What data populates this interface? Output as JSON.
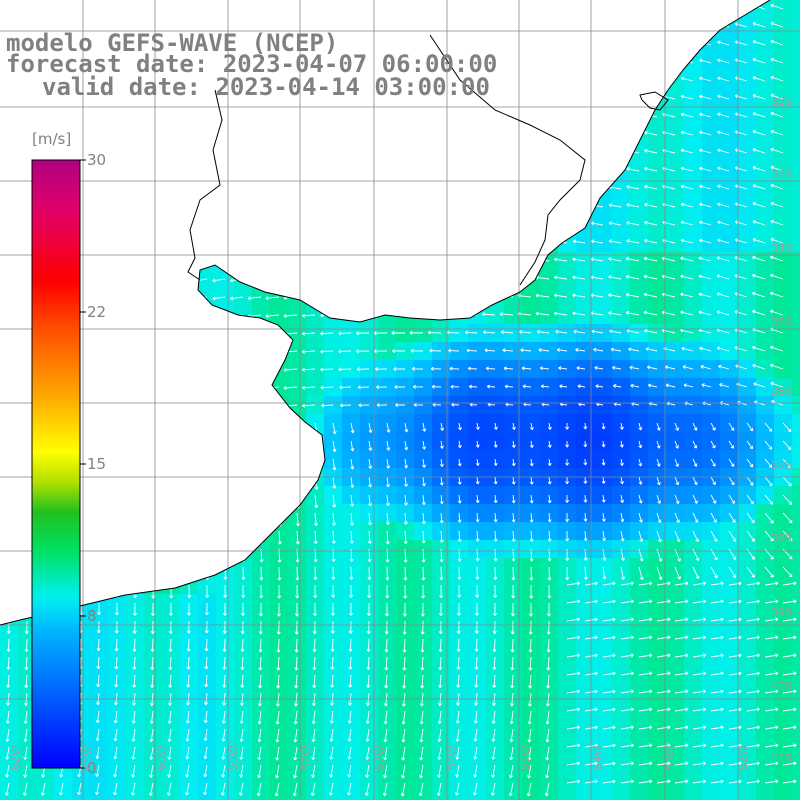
{
  "titles": {
    "model": "modelo GEFS-WAVE (NCEP)",
    "forecast": "forecast date: 2023-04-07 06:00:00",
    "valid": "valid date: 2023-04-14 03:00:00"
  },
  "colorbar": {
    "unit": "[m/s]",
    "ticks": [
      "30",
      "22",
      "15",
      "8",
      "0"
    ],
    "range": [
      0,
      30
    ],
    "colors": [
      "#0000ff",
      "#0060ff",
      "#00b0ff",
      "#00f0f0",
      "#00e060",
      "#20c020",
      "#b0e000",
      "#ffff00",
      "#ffa000",
      "#ff5000",
      "#ff0000",
      "#e0006a",
      "#b00080"
    ]
  },
  "lat_labels": [
    "32S",
    "33S",
    "34S",
    "35S",
    "36S",
    "37S",
    "38S",
    "39S",
    "40S",
    "41S"
  ],
  "lon_labels": [
    "62W",
    "61W",
    "60W",
    "59W",
    "58W",
    "57W",
    "56W",
    "55W",
    "54W",
    "53W",
    "52W"
  ],
  "colors": {
    "coast": "#000000",
    "grid": "#888888",
    "arrows": "#ffffff",
    "title_text": "#808080"
  }
}
